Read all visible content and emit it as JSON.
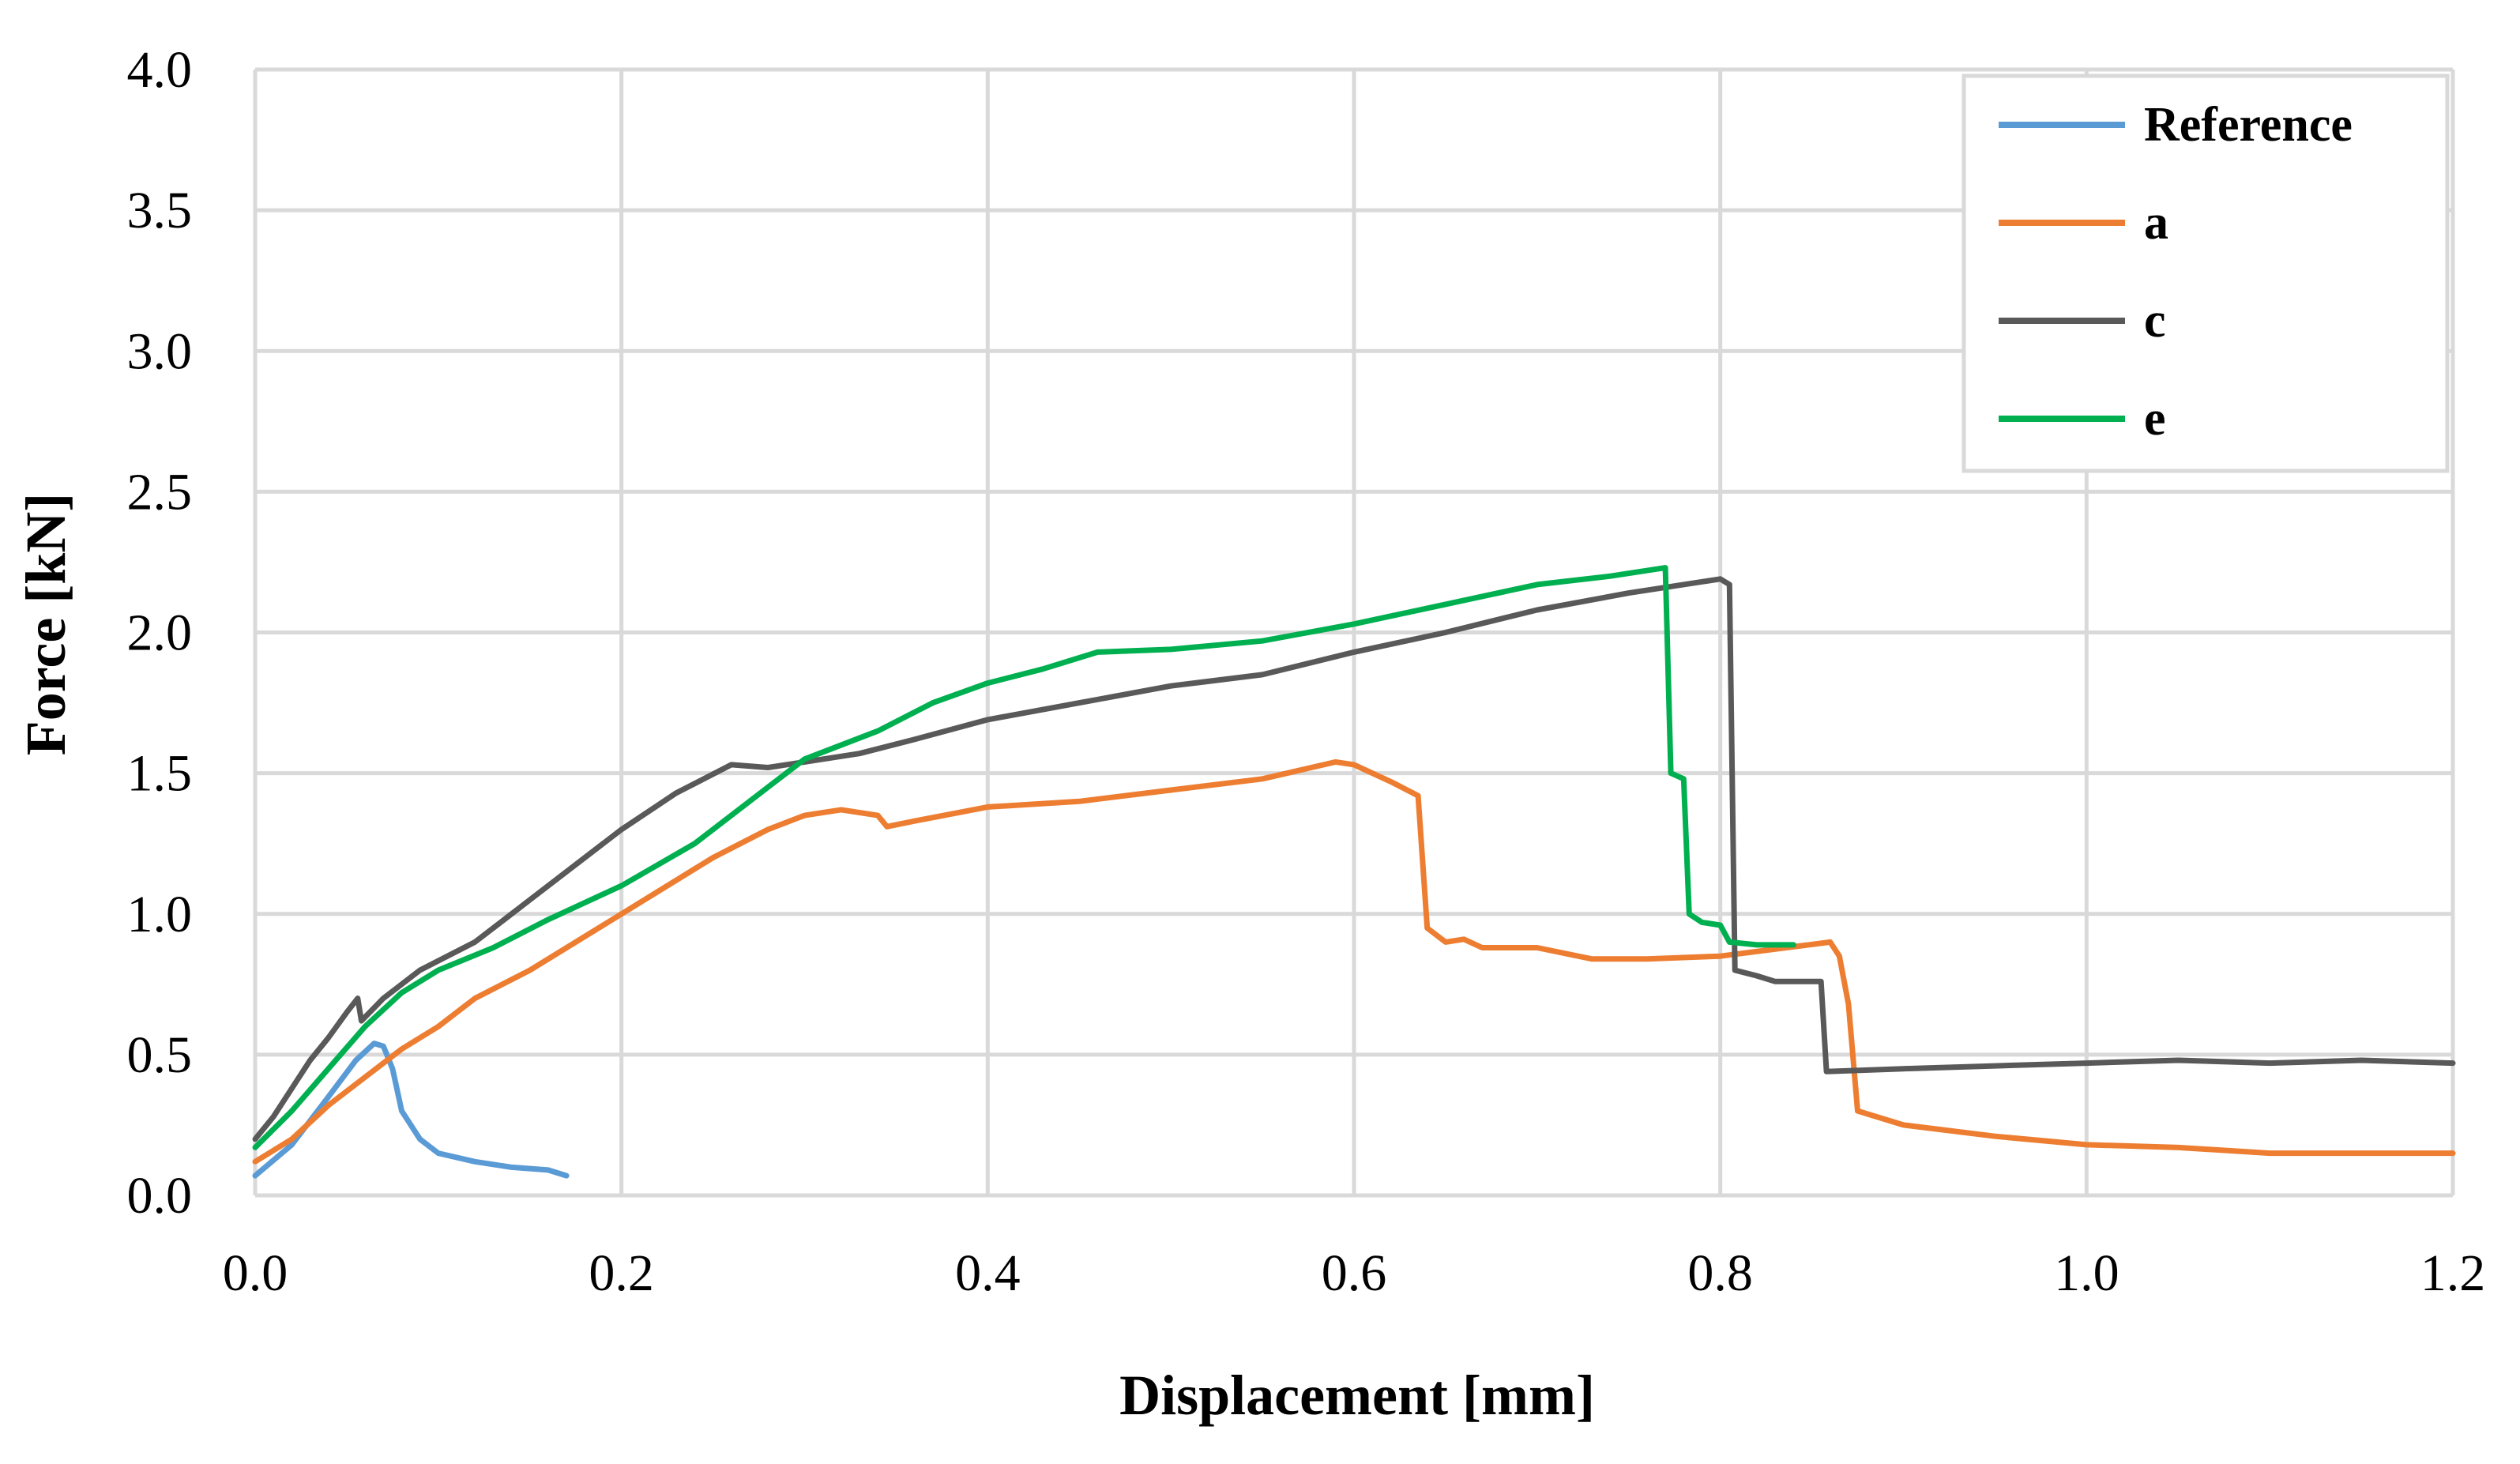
{
  "chart_data": {
    "type": "line",
    "title": "",
    "xlabel": "Displacement [mm]",
    "ylabel": "Force [kN]",
    "xlim": [
      0.0,
      1.2
    ],
    "ylim": [
      0.0,
      4.0
    ],
    "x_ticks": [
      "0.0",
      "0.2",
      "0.4",
      "0.6",
      "0.8",
      "1.0",
      "1.2"
    ],
    "y_ticks": [
      "0.0",
      "0.5",
      "1.0",
      "1.5",
      "2.0",
      "2.5",
      "3.0",
      "3.5",
      "4.0"
    ],
    "grid": true,
    "legend_position": "top-right",
    "series": [
      {
        "name": "Reference",
        "color": "#5b9bd5",
        "points": [
          [
            0.0,
            0.07
          ],
          [
            0.02,
            0.18
          ],
          [
            0.04,
            0.35
          ],
          [
            0.055,
            0.48
          ],
          [
            0.065,
            0.54
          ],
          [
            0.07,
            0.53
          ],
          [
            0.075,
            0.45
          ],
          [
            0.08,
            0.3
          ],
          [
            0.09,
            0.2
          ],
          [
            0.1,
            0.15
          ],
          [
            0.12,
            0.12
          ],
          [
            0.14,
            0.1
          ],
          [
            0.16,
            0.09
          ],
          [
            0.17,
            0.07
          ]
        ]
      },
      {
        "name": "a",
        "color": "#ed7d31",
        "points": [
          [
            0.0,
            0.12
          ],
          [
            0.02,
            0.2
          ],
          [
            0.04,
            0.32
          ],
          [
            0.06,
            0.42
          ],
          [
            0.08,
            0.52
          ],
          [
            0.1,
            0.6
          ],
          [
            0.12,
            0.7
          ],
          [
            0.15,
            0.8
          ],
          [
            0.2,
            1.0
          ],
          [
            0.25,
            1.2
          ],
          [
            0.28,
            1.3
          ],
          [
            0.3,
            1.35
          ],
          [
            0.32,
            1.37
          ],
          [
            0.34,
            1.35
          ],
          [
            0.345,
            1.31
          ],
          [
            0.36,
            1.33
          ],
          [
            0.4,
            1.38
          ],
          [
            0.45,
            1.4
          ],
          [
            0.5,
            1.44
          ],
          [
            0.55,
            1.48
          ],
          [
            0.59,
            1.54
          ],
          [
            0.6,
            1.53
          ],
          [
            0.62,
            1.47
          ],
          [
            0.635,
            1.42
          ],
          [
            0.64,
            0.95
          ],
          [
            0.65,
            0.9
          ],
          [
            0.66,
            0.91
          ],
          [
            0.67,
            0.88
          ],
          [
            0.7,
            0.88
          ],
          [
            0.73,
            0.84
          ],
          [
            0.76,
            0.84
          ],
          [
            0.8,
            0.85
          ],
          [
            0.86,
            0.9
          ],
          [
            0.865,
            0.85
          ],
          [
            0.87,
            0.68
          ],
          [
            0.875,
            0.3
          ],
          [
            0.9,
            0.25
          ],
          [
            0.95,
            0.21
          ],
          [
            1.0,
            0.18
          ],
          [
            1.05,
            0.17
          ],
          [
            1.1,
            0.15
          ],
          [
            1.2,
            0.15
          ]
        ]
      },
      {
        "name": "c",
        "color": "#595959",
        "points": [
          [
            0.0,
            0.2
          ],
          [
            0.01,
            0.28
          ],
          [
            0.02,
            0.38
          ],
          [
            0.03,
            0.48
          ],
          [
            0.04,
            0.56
          ],
          [
            0.05,
            0.65
          ],
          [
            0.056,
            0.7
          ],
          [
            0.058,
            0.62
          ],
          [
            0.07,
            0.7
          ],
          [
            0.09,
            0.8
          ],
          [
            0.12,
            0.9
          ],
          [
            0.15,
            1.05
          ],
          [
            0.2,
            1.3
          ],
          [
            0.23,
            1.43
          ],
          [
            0.26,
            1.53
          ],
          [
            0.28,
            1.52
          ],
          [
            0.3,
            1.54
          ],
          [
            0.33,
            1.57
          ],
          [
            0.36,
            1.62
          ],
          [
            0.4,
            1.69
          ],
          [
            0.45,
            1.75
          ],
          [
            0.5,
            1.81
          ],
          [
            0.55,
            1.85
          ],
          [
            0.6,
            1.93
          ],
          [
            0.65,
            2.0
          ],
          [
            0.7,
            2.08
          ],
          [
            0.75,
            2.14
          ],
          [
            0.8,
            2.19
          ],
          [
            0.805,
            2.17
          ],
          [
            0.808,
            0.8
          ],
          [
            0.82,
            0.78
          ],
          [
            0.83,
            0.76
          ],
          [
            0.855,
            0.76
          ],
          [
            0.858,
            0.44
          ],
          [
            0.9,
            0.45
          ],
          [
            0.95,
            0.46
          ],
          [
            1.0,
            0.47
          ],
          [
            1.05,
            0.48
          ],
          [
            1.1,
            0.47
          ],
          [
            1.15,
            0.48
          ],
          [
            1.2,
            0.47
          ]
        ]
      },
      {
        "name": "e",
        "color": "#00b050",
        "points": [
          [
            0.0,
            0.17
          ],
          [
            0.02,
            0.3
          ],
          [
            0.04,
            0.45
          ],
          [
            0.06,
            0.6
          ],
          [
            0.08,
            0.72
          ],
          [
            0.1,
            0.8
          ],
          [
            0.13,
            0.88
          ],
          [
            0.16,
            0.98
          ],
          [
            0.2,
            1.1
          ],
          [
            0.24,
            1.25
          ],
          [
            0.28,
            1.45
          ],
          [
            0.3,
            1.55
          ],
          [
            0.34,
            1.65
          ],
          [
            0.37,
            1.75
          ],
          [
            0.4,
            1.82
          ],
          [
            0.43,
            1.87
          ],
          [
            0.46,
            1.93
          ],
          [
            0.5,
            1.94
          ],
          [
            0.55,
            1.97
          ],
          [
            0.6,
            2.03
          ],
          [
            0.65,
            2.1
          ],
          [
            0.7,
            2.17
          ],
          [
            0.74,
            2.2
          ],
          [
            0.77,
            2.23
          ],
          [
            0.773,
            1.5
          ],
          [
            0.78,
            1.48
          ],
          [
            0.783,
            1.0
          ],
          [
            0.79,
            0.97
          ],
          [
            0.8,
            0.96
          ],
          [
            0.805,
            0.9
          ],
          [
            0.82,
            0.89
          ],
          [
            0.84,
            0.89
          ]
        ]
      }
    ]
  }
}
